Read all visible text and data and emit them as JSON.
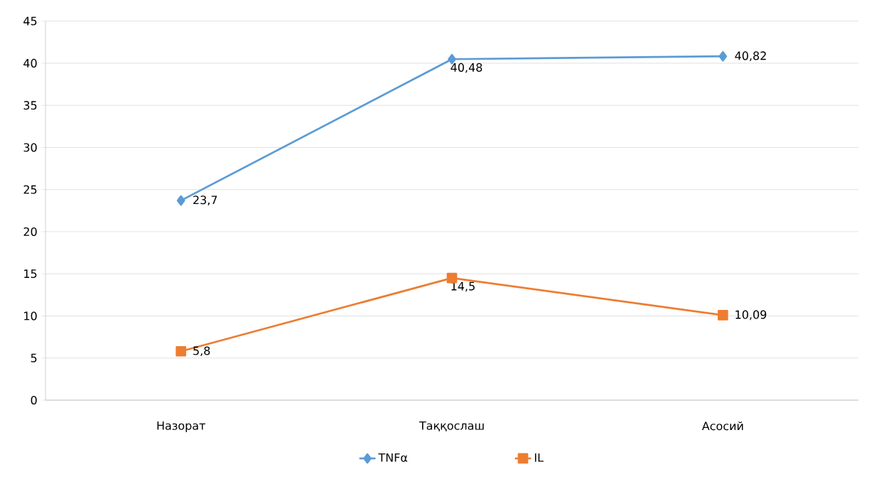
{
  "chart_data": {
    "type": "line",
    "categories": [
      "Назорат",
      "Таққослаш",
      "Асосий"
    ],
    "series": [
      {
        "name": "TNFα",
        "color": "#5b9bd5",
        "marker": "diamond",
        "values": [
          23.7,
          40.48,
          40.82
        ],
        "value_labels": [
          "23,7",
          "40,48",
          "40,82"
        ]
      },
      {
        "name": "IL",
        "color": "#ed7d31",
        "marker": "square",
        "values": [
          5.8,
          14.5,
          10.09
        ],
        "value_labels": [
          "5,8",
          "14,5",
          "10,09"
        ]
      }
    ],
    "ylim": [
      0,
      45
    ],
    "yticks": [
      0,
      5,
      10,
      15,
      20,
      25,
      30,
      35,
      40,
      45
    ],
    "grid": "y",
    "legend": "bottom",
    "line_style": "solid"
  }
}
